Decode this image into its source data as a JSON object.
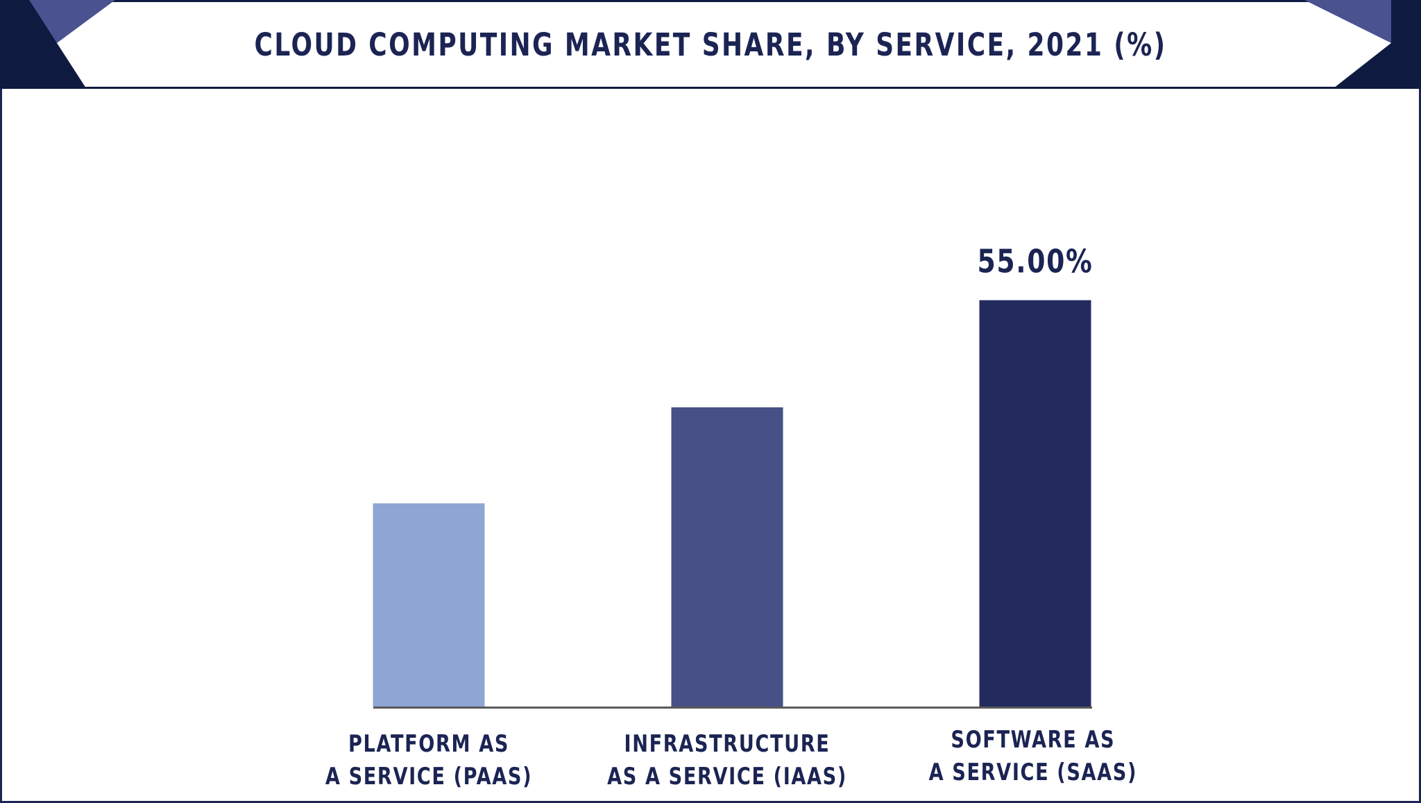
{
  "chart_data": {
    "type": "bar",
    "title": "CLOUD COMPUTING MARKET SHARE, BY SERVICE, 2021 (%)",
    "categories": [
      [
        "PLATFORM AS",
        "A SERVICE (PAAS)"
      ],
      [
        "INFRASTRUCTURE",
        "AS A SERVICE (IAAS)"
      ],
      [
        "SOFTWARE AS",
        "A SERVICE (SAAS)"
      ]
    ],
    "values": [
      27.5,
      40.5,
      55.0
    ],
    "data_labels": [
      "",
      "",
      "55.00%"
    ],
    "bar_colors": [
      "#8fa5d3",
      "#475087",
      "#232b5e"
    ],
    "ylim": [
      0,
      60
    ],
    "xlabel": "",
    "ylabel": "",
    "grid": false,
    "legend": "none"
  },
  "colors": {
    "title": "#1b2453",
    "baseline": "#5a5a5a",
    "header_dark": "#0e1a3f",
    "header_accent": "#4a5290"
  }
}
